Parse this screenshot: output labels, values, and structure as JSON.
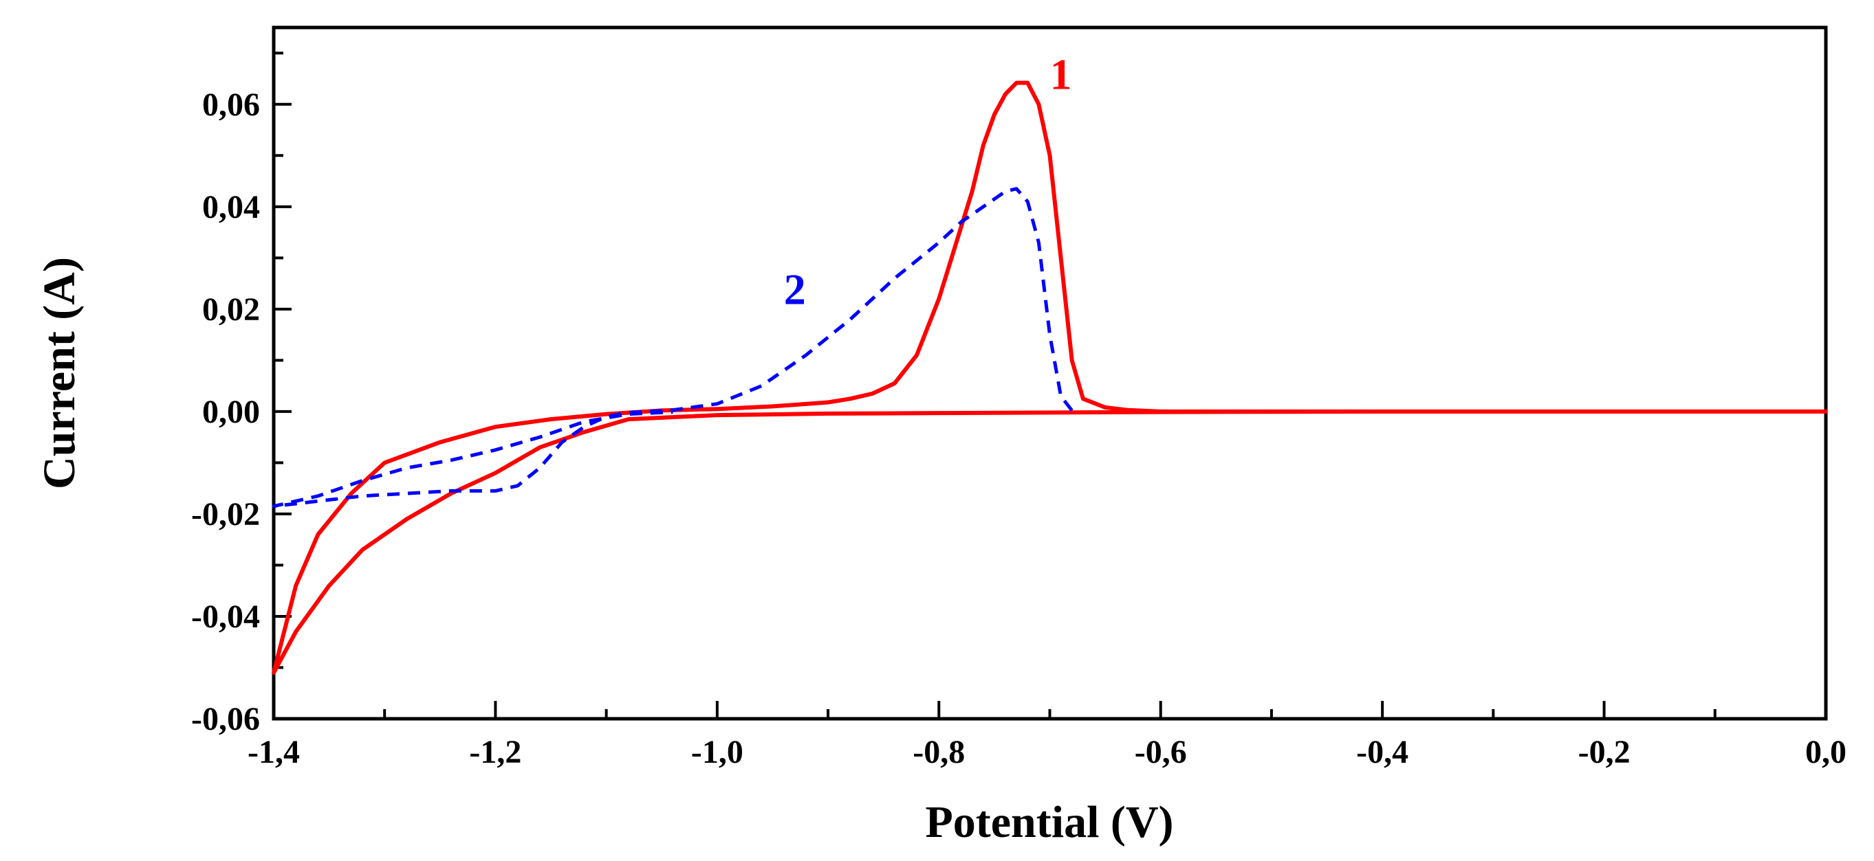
{
  "chart_data": {
    "type": "line",
    "title": "",
    "xlabel": "Potential (V)",
    "ylabel": "Current (A)",
    "xlim": [
      -1.4,
      0.0
    ],
    "ylim": [
      -0.06,
      0.075
    ],
    "grid": false,
    "legend": "none",
    "xticks": [
      -1.4,
      -1.2,
      -1.0,
      -0.8,
      -0.6,
      -0.4,
      -0.2,
      0.0
    ],
    "xtick_labels": [
      "-1,4",
      "-1,2",
      "-1,0",
      "-0,8",
      "-0,6",
      "-0,4",
      "-0,2",
      "0,0"
    ],
    "yticks": [
      -0.06,
      -0.04,
      -0.02,
      0.0,
      0.02,
      0.04,
      0.06
    ],
    "ytick_labels": [
      "-0,06",
      "-0,04",
      "-0,02",
      "0,00",
      "0,02",
      "0,04",
      "0,06"
    ],
    "series": [
      {
        "name": "1",
        "color": "#ff0000",
        "style": "solid",
        "x": [
          0.0,
          -0.2,
          -0.4,
          -0.6,
          -0.63,
          -0.65,
          -0.67,
          -0.68,
          -0.69,
          -0.7,
          -0.71,
          -0.72,
          -0.73,
          -0.74,
          -0.75,
          -0.76,
          -0.77,
          -0.78,
          -0.79,
          -0.8,
          -0.82,
          -0.84,
          -0.86,
          -0.88,
          -0.9,
          -0.95,
          -1.0,
          -1.05,
          -1.1,
          -1.15,
          -1.2,
          -1.25,
          -1.3,
          -1.33,
          -1.36,
          -1.38,
          -1.4,
          -1.38,
          -1.35,
          -1.32,
          -1.28,
          -1.24,
          -1.2,
          -1.16,
          -1.12,
          -1.08,
          -1.0,
          -0.9,
          -0.8,
          -0.7,
          -0.6,
          -0.4,
          -0.2,
          0.0
        ],
        "values": [
          0.0,
          0.0,
          0.0,
          0.0,
          0.0003,
          0.0008,
          0.0025,
          0.01,
          0.03,
          0.05,
          0.06,
          0.0642,
          0.0642,
          0.062,
          0.058,
          0.052,
          0.043,
          0.036,
          0.029,
          0.022,
          0.011,
          0.0055,
          0.0035,
          0.0025,
          0.0018,
          0.001,
          0.0005,
          0.0002,
          -0.0005,
          -0.0015,
          -0.003,
          -0.006,
          -0.01,
          -0.016,
          -0.024,
          -0.034,
          -0.051,
          -0.043,
          -0.034,
          -0.027,
          -0.021,
          -0.016,
          -0.012,
          -0.007,
          -0.004,
          -0.0015,
          -0.0007,
          -0.0004,
          -0.0003,
          -0.0002,
          -0.0001,
          0.0,
          0.0,
          0.0
        ]
      },
      {
        "name": "2",
        "color": "#0000ff",
        "style": "dashed",
        "x": [
          -0.68,
          -0.69,
          -0.7,
          -0.71,
          -0.72,
          -0.73,
          -0.74,
          -0.76,
          -0.78,
          -0.8,
          -0.84,
          -0.88,
          -0.92,
          -0.96,
          -1.0,
          -1.04,
          -1.08,
          -1.1,
          -1.12,
          -1.14,
          -1.16,
          -1.18,
          -1.2,
          -1.24,
          -1.28,
          -1.32,
          -1.36,
          -1.4,
          -1.36,
          -1.32,
          -1.28,
          -1.24,
          -1.2,
          -1.16,
          -1.12,
          -1.08,
          -1.04
        ],
        "values": [
          0.0002,
          0.003,
          0.015,
          0.033,
          0.041,
          0.0435,
          0.043,
          0.04,
          0.037,
          0.033,
          0.026,
          0.018,
          0.011,
          0.005,
          0.0015,
          0.0003,
          -0.0002,
          -0.001,
          -0.003,
          -0.006,
          -0.011,
          -0.0145,
          -0.0155,
          -0.0155,
          -0.016,
          -0.0165,
          -0.0175,
          -0.0185,
          -0.0165,
          -0.0135,
          -0.011,
          -0.0095,
          -0.0075,
          -0.005,
          -0.002,
          -0.0005,
          -0.0001
        ]
      }
    ],
    "annotations": [
      {
        "text": "1",
        "x": -0.69,
        "y": 0.063,
        "color": "#ff0000"
      },
      {
        "text": "2",
        "x": -0.93,
        "y": 0.021,
        "color": "#0000ff"
      }
    ]
  }
}
